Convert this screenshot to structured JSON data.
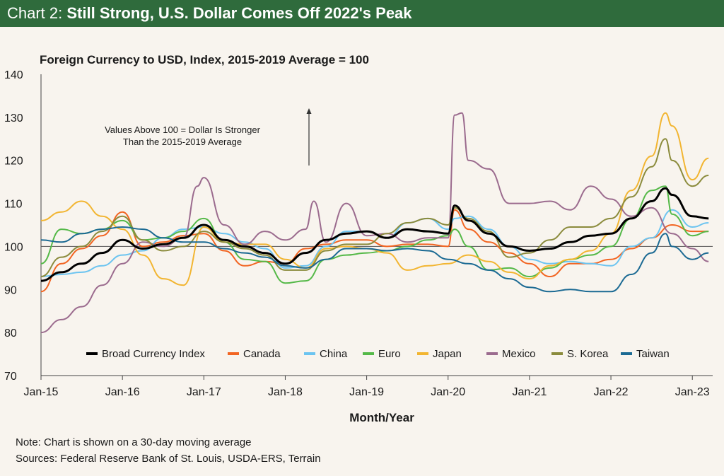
{
  "header": {
    "prefix": "Chart 2: ",
    "title": "Still Strong, U.S. Dollar Comes Off 2022's Peak",
    "bg_color": "#2f6b3c"
  },
  "footer": {
    "note": "Note: Chart is shown on a 30-day moving average",
    "sources": "Sources: Federal Reserve Bank of St. Louis, USDA-ERS, Terrain"
  },
  "chart_data": {
    "type": "line",
    "title": "Foreign Currency to USD, Index, 2015-2019 Average = 100",
    "xlabel": "Month/Year",
    "ylabel": "",
    "ylim": [
      70,
      140
    ],
    "yticks": [
      70,
      80,
      90,
      100,
      110,
      120,
      130,
      140
    ],
    "xlim": [
      2015.0,
      2023.25
    ],
    "xticks": [
      {
        "x": 2015,
        "label": "Jan-15"
      },
      {
        "x": 2016,
        "label": "Jan-16"
      },
      {
        "x": 2017,
        "label": "Jan-17"
      },
      {
        "x": 2018,
        "label": "Jan-18"
      },
      {
        "x": 2019,
        "label": "Jan-19"
      },
      {
        "x": 2020,
        "label": "Jan-20"
      },
      {
        "x": 2021,
        "label": "Jan-21"
      },
      {
        "x": 2022,
        "label": "Jan-22"
      },
      {
        "x": 2023,
        "label": "Jan-23"
      }
    ],
    "reference_line": 100,
    "annotation": {
      "lines": [
        "Values Above 100 = Dollar Is Stronger",
        "Than the 2015-2019 Average"
      ],
      "arrow": "up"
    },
    "legend_position": "bottom",
    "series": [
      {
        "name": "Broad Currency Index",
        "color": "#000000",
        "width": 3.0,
        "x": [
          2015,
          2015.25,
          2015.5,
          2015.75,
          2016,
          2016.25,
          2016.5,
          2016.75,
          2017,
          2017.25,
          2017.5,
          2017.75,
          2018,
          2018.25,
          2018.5,
          2018.75,
          2019,
          2019.25,
          2019.5,
          2019.75,
          2020,
          2020.08,
          2020.25,
          2020.5,
          2020.75,
          2021,
          2021.25,
          2021.5,
          2021.75,
          2022,
          2022.25,
          2022.5,
          2022.67,
          2022.75,
          2023,
          2023.2
        ],
        "y": [
          92,
          94,
          96,
          98.5,
          101.5,
          99.5,
          100.5,
          102,
          105,
          101.5,
          100,
          98.5,
          96,
          98.5,
          101.5,
          103,
          103.5,
          102,
          104,
          103.5,
          103,
          109.5,
          106,
          103,
          100,
          99,
          99.5,
          101,
          102.5,
          103,
          106.5,
          110.5,
          113.5,
          112,
          107,
          106.5
        ]
      },
      {
        "name": "Canada",
        "color": "#f26522",
        "width": 2.0,
        "x": [
          2015,
          2015.25,
          2015.5,
          2015.75,
          2016,
          2016.25,
          2016.5,
          2016.75,
          2017,
          2017.25,
          2017.5,
          2017.75,
          2018,
          2018.25,
          2018.5,
          2018.75,
          2019,
          2019.25,
          2019.5,
          2019.75,
          2020,
          2020.08,
          2020.25,
          2020.5,
          2020.75,
          2021,
          2021.25,
          2021.5,
          2021.75,
          2022,
          2022.25,
          2022.5,
          2022.75,
          2023,
          2023.2
        ],
        "y": [
          89.5,
          96,
          99.5,
          102.5,
          108,
          100,
          101,
          102.5,
          103,
          99,
          95.5,
          96.5,
          96,
          99.5,
          100.5,
          101.5,
          101.5,
          100,
          100.5,
          100.5,
          100,
          108.5,
          104,
          101,
          98.5,
          96,
          93,
          96,
          96,
          97,
          99.5,
          102,
          105,
          103.5,
          103.5
        ]
      },
      {
        "name": "China",
        "color": "#6cc4f0",
        "width": 2.0,
        "x": [
          2015,
          2015.25,
          2015.5,
          2015.75,
          2016,
          2016.25,
          2016.5,
          2016.75,
          2017,
          2017.25,
          2017.5,
          2017.75,
          2018,
          2018.25,
          2018.5,
          2018.75,
          2019,
          2019.25,
          2019.5,
          2019.75,
          2020,
          2020.08,
          2020.25,
          2020.5,
          2020.75,
          2021,
          2021.25,
          2021.5,
          2021.75,
          2022,
          2022.25,
          2022.5,
          2022.75,
          2023,
          2023.2
        ],
        "y": [
          93,
          93.5,
          94,
          95.5,
          98,
          99,
          102,
          104,
          104.5,
          103,
          101,
          99.5,
          95,
          95.5,
          100,
          103.5,
          103.5,
          102,
          105.5,
          106.5,
          104,
          106.5,
          107,
          104,
          100,
          97,
          96,
          96.5,
          96,
          95.5,
          100,
          102,
          108.5,
          104.5,
          105.5
        ]
      },
      {
        "name": "Euro",
        "color": "#55b948",
        "width": 2.0,
        "x": [
          2015,
          2015.25,
          2015.5,
          2015.75,
          2016,
          2016.25,
          2016.5,
          2016.75,
          2017,
          2017.25,
          2017.5,
          2017.75,
          2018,
          2018.25,
          2018.5,
          2018.75,
          2019,
          2019.25,
          2019.5,
          2019.75,
          2020,
          2020.08,
          2020.25,
          2020.5,
          2020.75,
          2021,
          2021.25,
          2021.5,
          2021.75,
          2022,
          2022.25,
          2022.5,
          2022.67,
          2022.75,
          2023,
          2023.2
        ],
        "y": [
          96,
          104,
          103,
          104,
          106,
          101.5,
          102,
          103.5,
          106.5,
          101,
          97,
          96.5,
          91.5,
          92,
          97,
          98,
          98.5,
          99,
          100,
          101.5,
          102.5,
          104,
          100,
          94.5,
          95,
          93,
          95,
          97,
          98,
          100,
          106.5,
          113,
          114,
          107.5,
          102.5,
          103.5
        ]
      },
      {
        "name": "Japan",
        "color": "#f2b531",
        "width": 2.0,
        "x": [
          2015,
          2015.25,
          2015.5,
          2015.75,
          2016,
          2016.25,
          2016.5,
          2016.75,
          2017,
          2017.25,
          2017.5,
          2017.75,
          2018,
          2018.25,
          2018.5,
          2018.75,
          2019,
          2019.25,
          2019.5,
          2019.75,
          2020,
          2020.25,
          2020.5,
          2020.75,
          2021,
          2021.25,
          2021.5,
          2021.75,
          2022,
          2022.25,
          2022.5,
          2022.67,
          2022.75,
          2023,
          2023.2
        ],
        "y": [
          106,
          108,
          110.5,
          107,
          104,
          98,
          92.5,
          91,
          104.5,
          101,
          100.5,
          100.5,
          97,
          95,
          99.5,
          100,
          99.5,
          98.5,
          94.5,
          95.5,
          96,
          98,
          96.5,
          94,
          92.5,
          95.5,
          97,
          99,
          103,
          113,
          121,
          131,
          128,
          115.5,
          120.5
        ]
      },
      {
        "name": "Mexico",
        "color": "#9b6b8e",
        "width": 2.0,
        "x": [
          2015,
          2015.25,
          2015.5,
          2015.75,
          2016,
          2016.25,
          2016.5,
          2016.75,
          2016.92,
          2017,
          2017.25,
          2017.5,
          2017.75,
          2018,
          2018.25,
          2018.35,
          2018.5,
          2018.75,
          2019,
          2019.25,
          2019.5,
          2019.75,
          2020,
          2020.08,
          2020.17,
          2020.25,
          2020.5,
          2020.75,
          2021,
          2021.25,
          2021.5,
          2021.75,
          2022,
          2022.25,
          2022.5,
          2022.75,
          2023,
          2023.2
        ],
        "y": [
          80,
          83,
          86,
          91,
          96,
          101,
          100,
          102,
          114,
          116,
          105,
          100.5,
          103.5,
          101.5,
          104,
          110.5,
          101,
          110,
          102.5,
          103,
          101,
          102,
          102,
          130.5,
          131,
          120,
          118,
          110,
          110,
          110.5,
          108.5,
          114,
          111,
          107,
          109,
          103,
          99.5,
          96.5
        ]
      },
      {
        "name": "S. Korea",
        "color": "#8b8b3c",
        "width": 2.0,
        "x": [
          2015,
          2015.25,
          2015.5,
          2015.75,
          2016,
          2016.25,
          2016.5,
          2016.75,
          2017,
          2017.25,
          2017.5,
          2017.75,
          2018,
          2018.25,
          2018.5,
          2018.75,
          2019,
          2019.25,
          2019.5,
          2019.75,
          2020,
          2020.08,
          2020.25,
          2020.5,
          2020.75,
          2021,
          2021.25,
          2021.5,
          2021.75,
          2022,
          2022.25,
          2022.5,
          2022.67,
          2022.75,
          2023,
          2023.2
        ],
        "y": [
          93,
          97.5,
          100,
          103.5,
          107,
          101.5,
          99,
          100,
          103.5,
          101,
          99.5,
          98,
          94.5,
          94.5,
          99,
          100.5,
          100.5,
          103,
          105.5,
          106.5,
          105,
          109,
          106.5,
          103.5,
          97.5,
          98.5,
          101.5,
          104.5,
          104.5,
          106.5,
          111.5,
          118.5,
          125,
          120,
          114,
          116.5
        ]
      },
      {
        "name": "Taiwan",
        "color": "#1b6a93",
        "width": 2.0,
        "x": [
          2015,
          2015.25,
          2015.5,
          2015.75,
          2016,
          2016.25,
          2016.5,
          2016.75,
          2017,
          2017.25,
          2017.5,
          2017.75,
          2018,
          2018.25,
          2018.5,
          2018.75,
          2019,
          2019.25,
          2019.5,
          2019.75,
          2020,
          2020.25,
          2020.5,
          2020.75,
          2021,
          2021.25,
          2021.5,
          2021.75,
          2022,
          2022.25,
          2022.5,
          2022.67,
          2022.75,
          2023,
          2023.2
        ],
        "y": [
          101.5,
          101,
          103,
          104,
          104.5,
          104,
          102,
          101,
          101,
          99.5,
          98.5,
          97.5,
          95.5,
          95,
          97,
          99.5,
          99.5,
          99,
          99.5,
          99,
          97,
          96,
          94.5,
          92.5,
          90.5,
          89.5,
          90,
          89.5,
          89.5,
          93.5,
          98.5,
          103,
          100,
          97,
          98.5
        ]
      }
    ]
  }
}
